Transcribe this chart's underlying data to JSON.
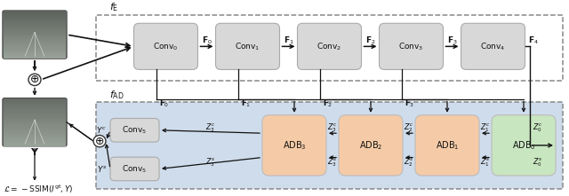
{
  "bg_color": "#ffffff",
  "enc_box_color": "#d8d8d8",
  "enc_conv_color": "#d8d8d8",
  "dec_bg_color": "#cfdceb",
  "adb_color": "#f5cba7",
  "adb0_color": "#c8e6c0",
  "conv5_color": "#d8d8d8",
  "fe_label": "$f_{\\mathrm{E}}$",
  "fad_label": "$f_{\\mathrm{AD}}$",
  "loss_label": "$\\mathcal{L} = -\\mathrm{SSIM}(I^{\\mathrm{gt}}, Y)$",
  "figsize": [
    6.4,
    2.21
  ],
  "dpi": 100
}
